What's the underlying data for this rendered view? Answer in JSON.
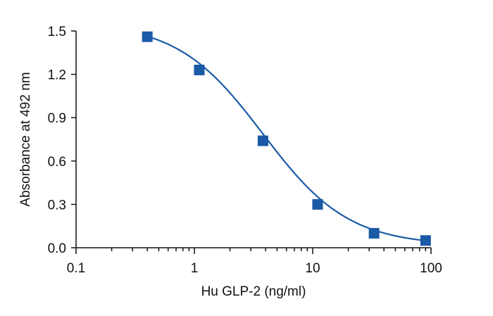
{
  "chart_data": {
    "type": "scatter",
    "xlabel": "Hu GLP-2 (ng/ml)",
    "ylabel": "Absorbance at 492 nm",
    "xscale": "log",
    "xlim": [
      0.1,
      100
    ],
    "ylim": [
      0,
      1.5
    ],
    "x_ticks": [
      0.1,
      1,
      10,
      100
    ],
    "x_tick_labels": [
      "0.1",
      "1",
      "10",
      "100"
    ],
    "y_ticks": [
      0,
      0.3,
      0.6,
      0.9,
      1.2,
      1.5
    ],
    "y_tick_labels": [
      "0.0",
      "0.3",
      "0.6",
      "0.9",
      "1.2",
      "1.5"
    ],
    "grid": false,
    "legend": "none",
    "series": [
      {
        "x": [
          0.4,
          1.1,
          3.8,
          11,
          33,
          90
        ],
        "y": [
          1.46,
          1.23,
          0.74,
          0.3,
          0.1,
          0.05
        ],
        "color": "#1a5aa6",
        "marker": "square",
        "fit_curve": "four-parameter logistic"
      }
    ]
  }
}
